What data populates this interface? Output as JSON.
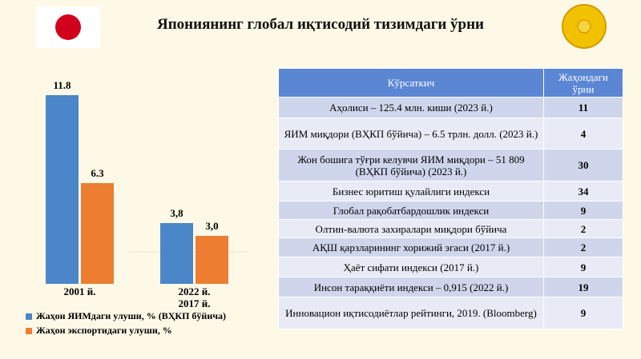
{
  "title": "Япониянинг глобал иқтисодий тизимдаги ўрни",
  "chart_data": {
    "type": "bar",
    "categories": [
      "2001 й.",
      "2022 й.\n2017 й."
    ],
    "series": [
      {
        "name": "Жаҳон ЯИМдаги улуши, % (ВҲКП бўйича)",
        "color": "#4a86c8",
        "values": [
          11.8,
          3.8
        ],
        "value_labels": [
          "11.8",
          "3,8"
        ]
      },
      {
        "name": "Жаҳон экспортидаги улуши, %",
        "color": "#ed7d31",
        "values": [
          6.3,
          3.0
        ],
        "value_labels": [
          "6.3",
          "3,0"
        ]
      }
    ]
  },
  "table": {
    "header": [
      "Кўрсаткич",
      "Жаҳондаги ўрни"
    ],
    "rows": [
      [
        "Аҳолиси – 125.4 млн. киши (2023 й.)",
        "11"
      ],
      [
        "ЯИМ миқдори (ВҲКП бўйича) – 6.5 трлн. долл. (2023 й.)",
        "4"
      ],
      [
        "Жон бошига тўғри келувчи ЯИМ миқдори – 51 809 (ВҲКП бўйича) (2023 й.)",
        "30"
      ],
      [
        "Бизнес юритиш қулайлиги индекси",
        "34"
      ],
      [
        "Глобал рақобатбардошлик индекси",
        "9"
      ],
      [
        "Олтин-валюта захиралари миқдори бўйича",
        "2"
      ],
      [
        "АҚШ қарзларининг хорижий эгаси (2017 й.)",
        "2"
      ],
      [
        "Ҳаёт сифати индекси (2017 й.)",
        "9"
      ],
      [
        "Инсон тараққиёти индекси – 0,915 (2022 й.)",
        "19"
      ],
      [
        "Инновацион иқтисодиётлар рейтинги, 2019. (Bloomberg)",
        "9"
      ]
    ]
  }
}
